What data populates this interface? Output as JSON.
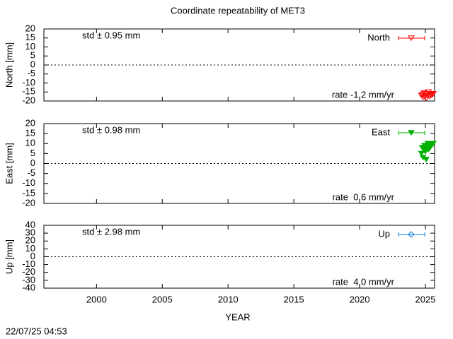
{
  "title": "Coordinate repeatability of MET3",
  "xlabel": "YEAR",
  "timestamp": "22/07/25 04:53",
  "chart_data": [
    {
      "type": "scatter",
      "ylabel": "North [mm]",
      "std_text": "std ± 0.95 mm",
      "rate_text": "rate -1.2 mm/yr",
      "xlim": [
        1996,
        2025.7
      ],
      "xticks": [
        2000,
        2005,
        2010,
        2015,
        2020,
        2025
      ],
      "xtick_labels": false,
      "ylim": [
        -20,
        20
      ],
      "yticks": [
        -20,
        -15,
        -10,
        -5,
        0,
        5,
        10,
        15,
        20
      ],
      "series": [
        {
          "name": "North",
          "color": "#ff0000",
          "marker": "triangle-open",
          "x": [
            2024.7,
            2024.76,
            2024.82,
            2024.88,
            2024.94,
            2025.0,
            2025.06,
            2025.12,
            2025.18,
            2025.24,
            2025.3,
            2025.36,
            2025.42,
            2025.48,
            2025.54,
            2025.6
          ],
          "values": [
            -17,
            -16.5,
            -18,
            -15.5,
            -17.5,
            -16,
            -18.5,
            -17,
            -16,
            -15,
            -17.5,
            -16.5,
            -17,
            -16,
            -16.5,
            -16
          ]
        }
      ]
    },
    {
      "type": "scatter",
      "ylabel": "East [mm]",
      "std_text": "std ± 0.98 mm",
      "rate_text": "rate  0.6 mm/yr",
      "xlim": [
        1996,
        2025.7
      ],
      "xticks": [
        2000,
        2005,
        2010,
        2015,
        2020,
        2025
      ],
      "xtick_labels": false,
      "ylim": [
        -20,
        20
      ],
      "yticks": [
        -20,
        -15,
        -10,
        -5,
        0,
        5,
        10,
        15,
        20
      ],
      "series": [
        {
          "name": "East",
          "color": "#00b000",
          "marker": "triangle-filled",
          "x": [
            2024.7,
            2024.76,
            2024.82,
            2024.88,
            2024.94,
            2025.0,
            2025.06,
            2025.12,
            2025.18,
            2025.24,
            2025.3,
            2025.36,
            2025.42,
            2025.48,
            2025.54,
            2025.6
          ],
          "values": [
            5,
            8,
            3,
            7,
            9,
            6,
            2,
            8,
            10,
            7,
            9,
            8,
            10,
            9,
            10,
            10
          ]
        }
      ]
    },
    {
      "type": "scatter",
      "ylabel": "Up [mm]",
      "std_text": "std ± 2.98 mm",
      "rate_text": "rate  4.0 mm/yr",
      "xlim": [
        1996,
        2025.7
      ],
      "xticks": [
        2000,
        2005,
        2010,
        2015,
        2020,
        2025
      ],
      "xtick_labels": true,
      "ylim": [
        -40,
        40
      ],
      "yticks": [
        -40,
        -30,
        -20,
        -10,
        0,
        10,
        20,
        30,
        40
      ],
      "series": [
        {
          "name": "Up",
          "color": "#0a7de0",
          "marker": "diamond-open",
          "x": [],
          "values": []
        }
      ]
    }
  ]
}
